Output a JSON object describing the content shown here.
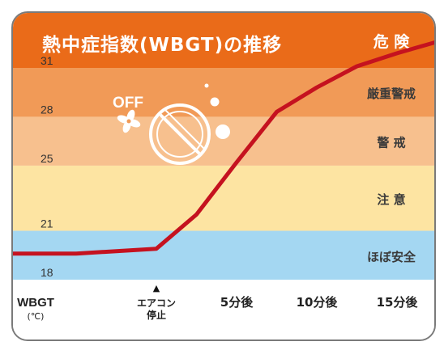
{
  "chart_data": {
    "type": "line",
    "title": "熱中症指数(WBGT)の推移",
    "ylabel_main": "WBGT",
    "ylabel_unit": "(℃)",
    "y_ticks": [
      18,
      21,
      25,
      28,
      31
    ],
    "ylim": [
      18,
      35
    ],
    "x_labels": [
      {
        "x": 0,
        "lines": [
          "エアコン",
          "停止"
        ],
        "marker": "▲"
      },
      {
        "x": 5,
        "lines": [
          "5分後"
        ]
      },
      {
        "x": 10,
        "lines": [
          "10分後"
        ]
      },
      {
        "x": 15,
        "lines": [
          "15分後"
        ]
      }
    ],
    "xlim": [
      -10,
      18.2
    ],
    "zones": [
      {
        "label": "危 険",
        "from": 31,
        "to": 35,
        "color": "#ea6b19"
      },
      {
        "label": "厳重警戒",
        "from": 28,
        "to": 31,
        "color": "#f19a57"
      },
      {
        "label": "警 戒",
        "from": 25,
        "to": 28,
        "color": "#f7c08e"
      },
      {
        "label": "注 意",
        "from": 21,
        "to": 25,
        "color": "#fde4a2"
      },
      {
        "label": "ほぼ安全",
        "from": 18,
        "to": 21,
        "color": "#a4d7f2"
      }
    ],
    "series": [
      {
        "color": "#c5121f",
        "x": [
          -10,
          -5,
          0,
          2.5,
          5,
          7.5,
          10,
          12.5,
          15,
          18.2
        ],
        "y": [
          19.6,
          19.6,
          19.9,
          22.0,
          25.2,
          28.3,
          29.8,
          31.1,
          31.9,
          32.8
        ]
      }
    ],
    "annotation": {
      "text": "OFF",
      "icon": "fan-icon",
      "overlay_icon": "prohibited-sign-icon"
    }
  }
}
